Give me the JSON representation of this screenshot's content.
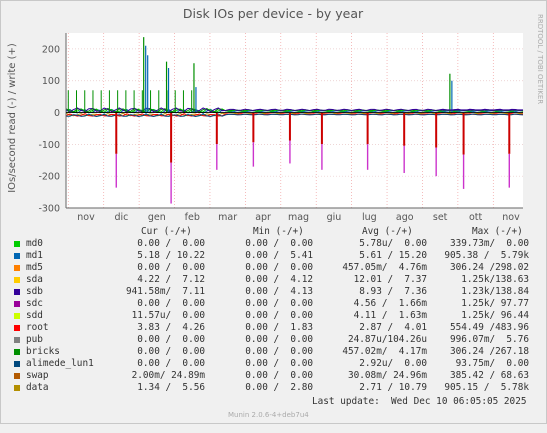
{
  "chart_data": {
    "type": "line",
    "title": "Disk IOs per device - by year",
    "ylabel": "IOs/second read (-) / write (+)",
    "side_label": "RRDTOOL / TOBI OETIKER",
    "ylim": [
      -300,
      250
    ],
    "yticks": [
      200,
      100,
      0,
      -100,
      -200,
      -300
    ],
    "ytick_labels": [
      "200",
      "100",
      "0",
      "-100",
      "-200",
      "-300"
    ],
    "month_labels": [
      "nov",
      "dic",
      "gen",
      "feb",
      "mar",
      "apr",
      "mag",
      "giu",
      "lug",
      "ago",
      "set",
      "ott",
      "nov"
    ],
    "series": [
      {
        "name": "md0",
        "color": "#00cc00"
      },
      {
        "name": "md1",
        "color": "#0066b3"
      },
      {
        "name": "md5",
        "color": "#ff8000"
      },
      {
        "name": "sda",
        "color": "#ffcc00"
      },
      {
        "name": "sdb",
        "color": "#330099"
      },
      {
        "name": "sdc",
        "color": "#990099"
      },
      {
        "name": "sdd",
        "color": "#ccff00"
      },
      {
        "name": "root",
        "color": "#ff0000"
      },
      {
        "name": "pub",
        "color": "#808080"
      },
      {
        "name": "bricks",
        "color": "#008f00"
      },
      {
        "name": "alimede_lun1",
        "color": "#00487d"
      },
      {
        "name": "swap",
        "color": "#b35a00"
      },
      {
        "name": "data",
        "color": "#b38f00"
      }
    ],
    "spikes_write": [
      {
        "x": 0.17,
        "values": [
          237,
          210,
          180
        ]
      },
      {
        "x": 0.22,
        "values": [
          160,
          140
        ]
      },
      {
        "x": 0.28,
        "values": [
          155,
          80
        ]
      },
      {
        "x": 0.84,
        "values": [
          122,
          100
        ]
      }
    ],
    "spikes_read": [
      {
        "x": 0.11,
        "values": [
          -236
        ]
      },
      {
        "x": 0.23,
        "values": [
          -286
        ]
      },
      {
        "x": 0.33,
        "values": [
          -180
        ]
      },
      {
        "x": 0.41,
        "values": [
          -170
        ]
      },
      {
        "x": 0.49,
        "values": [
          -160
        ]
      },
      {
        "x": 0.56,
        "values": [
          -180
        ]
      },
      {
        "x": 0.66,
        "values": [
          -180
        ]
      },
      {
        "x": 0.74,
        "values": [
          -190
        ]
      },
      {
        "x": 0.81,
        "values": [
          -200
        ]
      },
      {
        "x": 0.87,
        "values": [
          -240
        ]
      },
      {
        "x": 0.97,
        "values": [
          -236
        ]
      }
    ]
  },
  "legend": {
    "headers": {
      "cur": "Cur (-/+)",
      "min": "Min (-/+)",
      "avg": "Avg (-/+)",
      "max": "Max (-/+)"
    },
    "rows": [
      {
        "name": "md0",
        "color": "#00cc00",
        "cur": "0.00 /  0.00",
        "min": "0.00 /  0.00",
        "avg": "5.78u/  0.00",
        "max": "339.73m/  0.00"
      },
      {
        "name": "md1",
        "color": "#0066b3",
        "cur": "5.18 / 10.22",
        "min": "0.00 /  5.41",
        "avg": "5.61 / 15.20",
        "max": "905.38 /  5.79k"
      },
      {
        "name": "md5",
        "color": "#ff8000",
        "cur": "0.00 /  0.00",
        "min": "0.00 /  0.00",
        "avg": "457.05m/  4.76m",
        "max": "306.24 /298.02"
      },
      {
        "name": "sda",
        "color": "#ffcc00",
        "cur": "4.22 /  7.12",
        "min": "0.00 /  4.12",
        "avg": "12.01 /  7.37",
        "max": "1.25k/138.63"
      },
      {
        "name": "sdb",
        "color": "#330099",
        "cur": "941.58m/  7.11",
        "min": "0.00 /  4.13",
        "avg": "8.93 /  7.36",
        "max": "1.23k/138.84"
      },
      {
        "name": "sdc",
        "color": "#990099",
        "cur": "0.00 /  0.00",
        "min": "0.00 /  0.00",
        "avg": "4.56 /  1.66m",
        "max": "1.25k/ 97.77"
      },
      {
        "name": "sdd",
        "color": "#ccff00",
        "cur": "11.57u/  0.00",
        "min": "0.00 /  0.00",
        "avg": "4.11 /  1.63m",
        "max": "1.25k/ 96.44"
      },
      {
        "name": "root",
        "color": "#ff0000",
        "cur": "3.83 /  4.26",
        "min": "0.00 /  1.83",
        "avg": "2.87 /  4.01",
        "max": "554.49 /483.96"
      },
      {
        "name": "pub",
        "color": "#808080",
        "cur": "0.00 /  0.00",
        "min": "0.00 /  0.00",
        "avg": "24.87u/104.26u",
        "max": "996.07m/  5.76"
      },
      {
        "name": "bricks",
        "color": "#008f00",
        "cur": "0.00 /  0.00",
        "min": "0.00 /  0.00",
        "avg": "457.02m/  4.17m",
        "max": "306.24 /267.18"
      },
      {
        "name": "alimede_lun1",
        "color": "#00487d",
        "cur": "0.00 /  0.00",
        "min": "0.00 /  0.00",
        "avg": "2.92u/  0.00",
        "max": "93.75m/  0.00"
      },
      {
        "name": "swap",
        "color": "#b35a00",
        "cur": "2.00m/ 24.89m",
        "min": "0.00 /  0.00",
        "avg": "30.08m/ 24.96m",
        "max": "385.42 / 68.63"
      },
      {
        "name": "data",
        "color": "#b38f00",
        "cur": "1.34 /  5.56",
        "min": "0.00 /  2.80",
        "avg": "2.71 / 10.79",
        "max": "905.15 /  5.78k"
      }
    ],
    "last_update": "Last update:  Wed Dec 10 06:05:05 2025",
    "footer": "Munin 2.0.6-4+deb7u4"
  }
}
